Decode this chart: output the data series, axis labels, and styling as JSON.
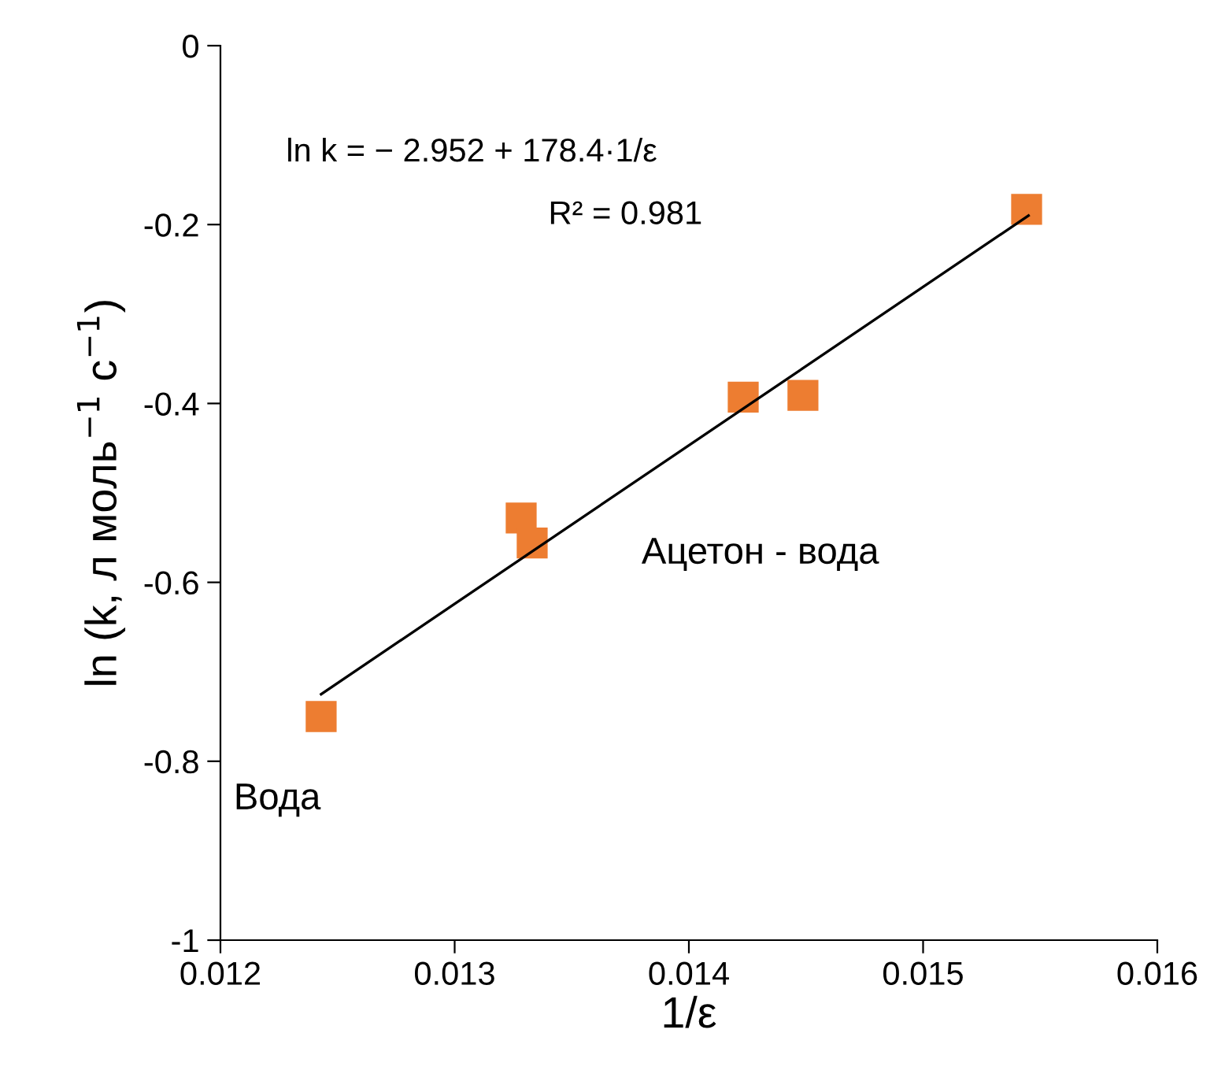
{
  "chart_data": {
    "type": "scatter",
    "xlabel": "1/ε",
    "ylabel": "ln (k, л моль$^{−1}$ с$^{−1}$)",
    "xlim": [
      0.012,
      0.016
    ],
    "xticks": [
      0.012,
      0.013,
      0.014,
      0.015,
      0.016
    ],
    "ylim": [
      -1,
      0
    ],
    "yticks": [
      -1,
      -0.8,
      -0.6,
      -0.4,
      -0.2,
      0
    ],
    "grid": false,
    "legend": false,
    "series": [
      {
        "marker": "square",
        "color": "#ed7d31",
        "x": [
          0.01243,
          0.013284,
          0.013331,
          0.014232,
          0.014487,
          0.015442
        ],
        "values": [
          -0.75,
          -0.528,
          -0.556,
          -0.393,
          -0.391,
          -0.183
        ]
      },
      {
        "type": "line",
        "marker": "none",
        "color": "#000000",
        "x": [
          0.01243,
          0.01545
        ],
        "values": [
          -0.725,
          -0.19
        ]
      }
    ],
    "annotations": [
      "ln k = − 2.952 + 178.4·1/ε",
      "R² = 0.981",
      {
        "text": "Вода",
        "x": 0.01243,
        "y": -0.75
      },
      {
        "text": "Ацетон - вода",
        "x": 0.013331,
        "y": -0.556
      }
    ]
  }
}
